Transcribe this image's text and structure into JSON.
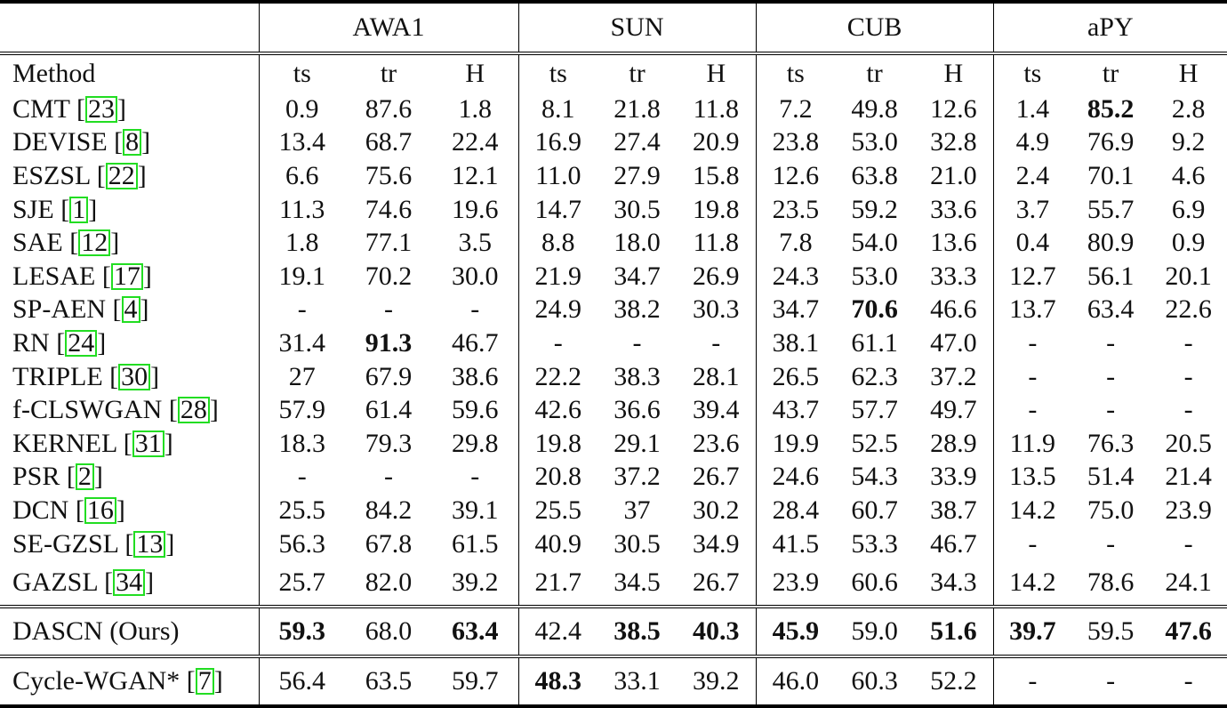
{
  "groups": [
    "AWA1",
    "SUN",
    "CUB",
    "aPY"
  ],
  "method_header": "Method",
  "subcols": [
    "ts",
    "tr",
    "H"
  ],
  "rows": [
    {
      "method": "CMT",
      "cite": "23",
      "values": [
        "0.9",
        "87.6",
        "1.8",
        "8.1",
        "21.8",
        "11.8",
        "7.2",
        "49.8",
        "12.6",
        "1.4",
        "85.2",
        "2.8"
      ],
      "bold": [
        10
      ]
    },
    {
      "method": "DEVISE",
      "cite": "8",
      "values": [
        "13.4",
        "68.7",
        "22.4",
        "16.9",
        "27.4",
        "20.9",
        "23.8",
        "53.0",
        "32.8",
        "4.9",
        "76.9",
        "9.2"
      ],
      "bold": []
    },
    {
      "method": "ESZSL",
      "cite": "22",
      "values": [
        "6.6",
        "75.6",
        "12.1",
        "11.0",
        "27.9",
        "15.8",
        "12.6",
        "63.8",
        "21.0",
        "2.4",
        "70.1",
        "4.6"
      ],
      "bold": []
    },
    {
      "method": "SJE",
      "cite": "1",
      "values": [
        "11.3",
        "74.6",
        "19.6",
        "14.7",
        "30.5",
        "19.8",
        "23.5",
        "59.2",
        "33.6",
        "3.7",
        "55.7",
        "6.9"
      ],
      "bold": []
    },
    {
      "method": "SAE",
      "cite": "12",
      "values": [
        "1.8",
        "77.1",
        "3.5",
        "8.8",
        "18.0",
        "11.8",
        "7.8",
        "54.0",
        "13.6",
        "0.4",
        "80.9",
        "0.9"
      ],
      "bold": []
    },
    {
      "method": "LESAE",
      "cite": "17",
      "values": [
        "19.1",
        "70.2",
        "30.0",
        "21.9",
        "34.7",
        "26.9",
        "24.3",
        "53.0",
        "33.3",
        "12.7",
        "56.1",
        "20.1"
      ],
      "bold": []
    },
    {
      "method": "SP-AEN",
      "cite": "4",
      "values": [
        "-",
        "-",
        "-",
        "24.9",
        "38.2",
        "30.3",
        "34.7",
        "70.6",
        "46.6",
        "13.7",
        "63.4",
        "22.6"
      ],
      "bold": [
        7
      ]
    },
    {
      "method": "RN",
      "cite": "24",
      "values": [
        "31.4",
        "91.3",
        "46.7",
        "-",
        "-",
        "-",
        "38.1",
        "61.1",
        "47.0",
        "-",
        "-",
        "-"
      ],
      "bold": [
        1
      ]
    },
    {
      "method": "TRIPLE",
      "cite": "30",
      "values": [
        "27",
        "67.9",
        "38.6",
        "22.2",
        "38.3",
        "28.1",
        "26.5",
        "62.3",
        "37.2",
        "-",
        "-",
        "-"
      ],
      "bold": []
    },
    {
      "method": "f-CLSWGAN",
      "cite": "28",
      "values": [
        "57.9",
        "61.4",
        "59.6",
        "42.6",
        "36.6",
        "39.4",
        "43.7",
        "57.7",
        "49.7",
        "-",
        "-",
        "-"
      ],
      "bold": []
    },
    {
      "method": "KERNEL",
      "cite": "31",
      "values": [
        "18.3",
        "79.3",
        "29.8",
        "19.8",
        "29.1",
        "23.6",
        "19.9",
        "52.5",
        "28.9",
        "11.9",
        "76.3",
        "20.5"
      ],
      "bold": []
    },
    {
      "method": "PSR",
      "cite": "2",
      "values": [
        "-",
        "-",
        "-",
        "20.8",
        "37.2",
        "26.7",
        "24.6",
        "54.3",
        "33.9",
        "13.5",
        "51.4",
        "21.4"
      ],
      "bold": []
    },
    {
      "method": "DCN",
      "cite": "16",
      "values": [
        "25.5",
        "84.2",
        "39.1",
        "25.5",
        "37",
        "30.2",
        "28.4",
        "60.7",
        "38.7",
        "14.2",
        "75.0",
        "23.9"
      ],
      "bold": []
    },
    {
      "method": "SE-GZSL",
      "cite": "13",
      "values": [
        "56.3",
        "67.8",
        "61.5",
        "40.9",
        "30.5",
        "34.9",
        "41.5",
        "53.3",
        "46.7",
        "-",
        "-",
        "-"
      ],
      "bold": []
    },
    {
      "method": "GAZSL",
      "cite": "34",
      "values": [
        "25.7",
        "82.0",
        "39.2",
        "21.7",
        "34.5",
        "26.7",
        "23.9",
        "60.6",
        "34.3",
        "14.2",
        "78.6",
        "24.1"
      ],
      "bold": []
    }
  ],
  "ours": {
    "method": "DASCN (Ours)",
    "cite": "",
    "values": [
      "59.3",
      "68.0",
      "63.4",
      "42.4",
      "38.5",
      "40.3",
      "45.9",
      "59.0",
      "51.6",
      "39.7",
      "59.5",
      "47.6"
    ],
    "bold": [
      0,
      2,
      4,
      5,
      6,
      8,
      9,
      11
    ]
  },
  "extra": {
    "method": "Cycle-WGAN*",
    "cite": "7",
    "values": [
      "56.4",
      "63.5",
      "59.7",
      "48.3",
      "33.1",
      "39.2",
      "46.0",
      "60.3",
      "52.2",
      "-",
      "-",
      "-"
    ],
    "bold": [
      3
    ]
  }
}
